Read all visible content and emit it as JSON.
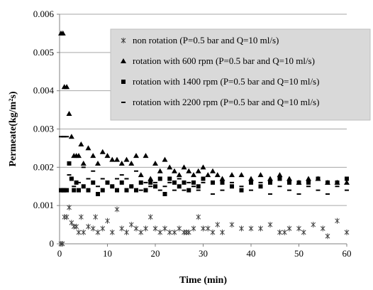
{
  "chart_data": {
    "type": "scatter",
    "xlabel": "Time (min)",
    "ylabel": "Permeate(kg/m²s)",
    "xlim": [
      0,
      60
    ],
    "ylim": [
      0,
      0.006
    ],
    "x_ticks": [
      0,
      10,
      20,
      30,
      40,
      50,
      60
    ],
    "y_ticks": [
      0,
      0.001,
      0.002,
      0.003,
      0.004,
      0.005,
      0.006
    ],
    "x_tick_labels": [
      "0",
      "10",
      "20",
      "30",
      "40",
      "50",
      "60"
    ],
    "y_tick_labels": [
      "0",
      "0.001",
      "0.002",
      "0.003",
      "0.004",
      "0.005",
      "0.006"
    ],
    "grid": "horizontal",
    "legend_position": "top-right",
    "series": [
      {
        "name": "non rotation (P=0.5 bar and Q=10 ml/s)",
        "marker": "asterisk",
        "color": "#404040",
        "points": [
          [
            0.3,
            0
          ],
          [
            0.6,
            0
          ],
          [
            1,
            0.0007
          ],
          [
            1.5,
            0.0007
          ],
          [
            2,
            0.00095
          ],
          [
            2.5,
            0.00055
          ],
          [
            3,
            0.00045
          ],
          [
            3.5,
            0.00045
          ],
          [
            4,
            0.0003
          ],
          [
            4.5,
            0.0007
          ],
          [
            5,
            0.0003
          ],
          [
            6,
            0.00045
          ],
          [
            7,
            0.0004
          ],
          [
            7.5,
            0.0007
          ],
          [
            8,
            0.0003
          ],
          [
            9,
            0.0004
          ],
          [
            10,
            0.0006
          ],
          [
            11,
            0.0003
          ],
          [
            12,
            0.0009
          ],
          [
            13,
            0.0004
          ],
          [
            14,
            0.0003
          ],
          [
            15,
            0.0005
          ],
          [
            16,
            0.0004
          ],
          [
            17,
            0.0003
          ],
          [
            18,
            0.0004
          ],
          [
            19,
            0.0007
          ],
          [
            20,
            0.0004
          ],
          [
            21,
            0.0003
          ],
          [
            22,
            0.0004
          ],
          [
            23,
            0.0003
          ],
          [
            24,
            0.0003
          ],
          [
            25,
            0.0004
          ],
          [
            26,
            0.0003
          ],
          [
            26.5,
            0.0003
          ],
          [
            27,
            0.0003
          ],
          [
            28,
            0.0004
          ],
          [
            29,
            0.0007
          ],
          [
            30,
            0.0004
          ],
          [
            31,
            0.0004
          ],
          [
            32,
            0.0003
          ],
          [
            33,
            0.0005
          ],
          [
            34,
            0.0003
          ],
          [
            36,
            0.0005
          ],
          [
            38,
            0.0004
          ],
          [
            40,
            0.0004
          ],
          [
            42,
            0.0004
          ],
          [
            44,
            0.0005
          ],
          [
            46,
            0.0003
          ],
          [
            47,
            0.0003
          ],
          [
            48,
            0.0004
          ],
          [
            50,
            0.0004
          ],
          [
            51,
            0.0003
          ],
          [
            53,
            0.0005
          ],
          [
            55,
            0.0004
          ],
          [
            56,
            0.0002
          ],
          [
            58,
            0.0006
          ],
          [
            60,
            0.0003
          ]
        ]
      },
      {
        "name": "rotation with 600 rpm (P=0.5 bar and Q=10 ml/s)",
        "marker": "triangle",
        "color": "#000000",
        "points": [
          [
            0.3,
            0.0055
          ],
          [
            0.7,
            0.0055
          ],
          [
            1,
            0.0041
          ],
          [
            1.5,
            0.0041
          ],
          [
            2,
            0.0034
          ],
          [
            2.5,
            0.0028
          ],
          [
            3,
            0.0023
          ],
          [
            3.5,
            0.0023
          ],
          [
            4,
            0.0023
          ],
          [
            4.5,
            0.0026
          ],
          [
            5,
            0.0021
          ],
          [
            6,
            0.0025
          ],
          [
            7,
            0.0023
          ],
          [
            8,
            0.0021
          ],
          [
            9,
            0.0024
          ],
          [
            10,
            0.0023
          ],
          [
            11,
            0.0022
          ],
          [
            12,
            0.0022
          ],
          [
            13,
            0.0021
          ],
          [
            14,
            0.0022
          ],
          [
            15,
            0.0021
          ],
          [
            16,
            0.0023
          ],
          [
            17,
            0.0018
          ],
          [
            18,
            0.0023
          ],
          [
            19,
            0.0017
          ],
          [
            20,
            0.0021
          ],
          [
            21,
            0.0019
          ],
          [
            22,
            0.0022
          ],
          [
            23,
            0.002
          ],
          [
            24,
            0.0019
          ],
          [
            25,
            0.0018
          ],
          [
            26,
            0.002
          ],
          [
            27,
            0.0019
          ],
          [
            28,
            0.0018
          ],
          [
            29,
            0.0019
          ],
          [
            30,
            0.002
          ],
          [
            31,
            0.0018
          ],
          [
            32,
            0.0019
          ],
          [
            33,
            0.0018
          ],
          [
            34,
            0.0017
          ],
          [
            36,
            0.0018
          ],
          [
            38,
            0.0018
          ],
          [
            40,
            0.0017
          ],
          [
            42,
            0.0018
          ],
          [
            44,
            0.0017
          ],
          [
            46,
            0.0018
          ],
          [
            48,
            0.0017
          ],
          [
            50,
            0.0016
          ],
          [
            52,
            0.0017
          ],
          [
            54,
            0.0017
          ],
          [
            56,
            0.0016
          ],
          [
            58,
            0.0016
          ],
          [
            60,
            0.0016
          ]
        ]
      },
      {
        "name": "rotation with 1400 rpm (P=0.5 bar and Q=10 ml/s)",
        "marker": "square",
        "color": "#000000",
        "points": [
          [
            0.3,
            0.0014
          ],
          [
            0.7,
            0.0014
          ],
          [
            1,
            0.0014
          ],
          [
            1.5,
            0.0014
          ],
          [
            2,
            0.0021
          ],
          [
            2.5,
            0.0017
          ],
          [
            3,
            0.0014
          ],
          [
            3.5,
            0.0016
          ],
          [
            4,
            0.0014
          ],
          [
            5,
            0.0015
          ],
          [
            6,
            0.0014
          ],
          [
            7,
            0.0016
          ],
          [
            8,
            0.0013
          ],
          [
            9,
            0.0014
          ],
          [
            10,
            0.0016
          ],
          [
            11,
            0.0015
          ],
          [
            12,
            0.0014
          ],
          [
            13,
            0.0016
          ],
          [
            14,
            0.0014
          ],
          [
            15,
            0.0015
          ],
          [
            16,
            0.0014
          ],
          [
            17,
            0.0016
          ],
          [
            18,
            0.0014
          ],
          [
            19,
            0.0016
          ],
          [
            20,
            0.0015
          ],
          [
            21,
            0.0017
          ],
          [
            22,
            0.0013
          ],
          [
            23,
            0.0017
          ],
          [
            24,
            0.0016
          ],
          [
            25,
            0.0015
          ],
          [
            26,
            0.0016
          ],
          [
            27,
            0.0014
          ],
          [
            28,
            0.0016
          ],
          [
            29,
            0.0015
          ],
          [
            30,
            0.0017
          ],
          [
            32,
            0.0016
          ],
          [
            34,
            0.0016
          ],
          [
            36,
            0.0015
          ],
          [
            38,
            0.0014
          ],
          [
            40,
            0.0016
          ],
          [
            42,
            0.0015
          ],
          [
            44,
            0.0016
          ],
          [
            46,
            0.0017
          ],
          [
            48,
            0.0016
          ],
          [
            50,
            0.0016
          ],
          [
            52,
            0.0016
          ],
          [
            54,
            0.0017
          ],
          [
            56,
            0.0016
          ],
          [
            58,
            0.0016
          ],
          [
            60,
            0.0017
          ]
        ]
      },
      {
        "name": "rotation with 2200 rpm (P=0.5 bar and Q=10 ml/s)",
        "marker": "dash",
        "color": "#000000",
        "points": [
          [
            0.3,
            0.0028
          ],
          [
            0.7,
            0.0028
          ],
          [
            1,
            0.0028
          ],
          [
            1.5,
            0.0028
          ],
          [
            2,
            0.0018
          ],
          [
            2.5,
            0.0017
          ],
          [
            3,
            0.0015
          ],
          [
            4,
            0.0016
          ],
          [
            5,
            0.002
          ],
          [
            6,
            0.0017
          ],
          [
            7,
            0.0019
          ],
          [
            8,
            0.0015
          ],
          [
            9,
            0.0017
          ],
          [
            10,
            0.0016
          ],
          [
            11,
            0.0015
          ],
          [
            12,
            0.0017
          ],
          [
            13,
            0.0018
          ],
          [
            14,
            0.0017
          ],
          [
            15,
            0.0015
          ],
          [
            16,
            0.0019
          ],
          [
            17,
            0.0014
          ],
          [
            18,
            0.0016
          ],
          [
            19,
            0.0015
          ],
          [
            20,
            0.0016
          ],
          [
            21,
            0.0014
          ],
          [
            22,
            0.0015
          ],
          [
            23,
            0.0016
          ],
          [
            24,
            0.0014
          ],
          [
            25,
            0.0017
          ],
          [
            26,
            0.0014
          ],
          [
            27,
            0.0016
          ],
          [
            28,
            0.0015
          ],
          [
            29,
            0.0014
          ],
          [
            30,
            0.0016
          ],
          [
            32,
            0.0013
          ],
          [
            34,
            0.0014
          ],
          [
            36,
            0.0016
          ],
          [
            38,
            0.0015
          ],
          [
            40,
            0.0014
          ],
          [
            42,
            0.0016
          ],
          [
            44,
            0.0013
          ],
          [
            46,
            0.0015
          ],
          [
            48,
            0.0014
          ],
          [
            50,
            0.0013
          ],
          [
            52,
            0.0015
          ],
          [
            54,
            0.0014
          ],
          [
            56,
            0.0013
          ],
          [
            58,
            0.0015
          ],
          [
            60,
            0.0014
          ]
        ]
      }
    ]
  }
}
